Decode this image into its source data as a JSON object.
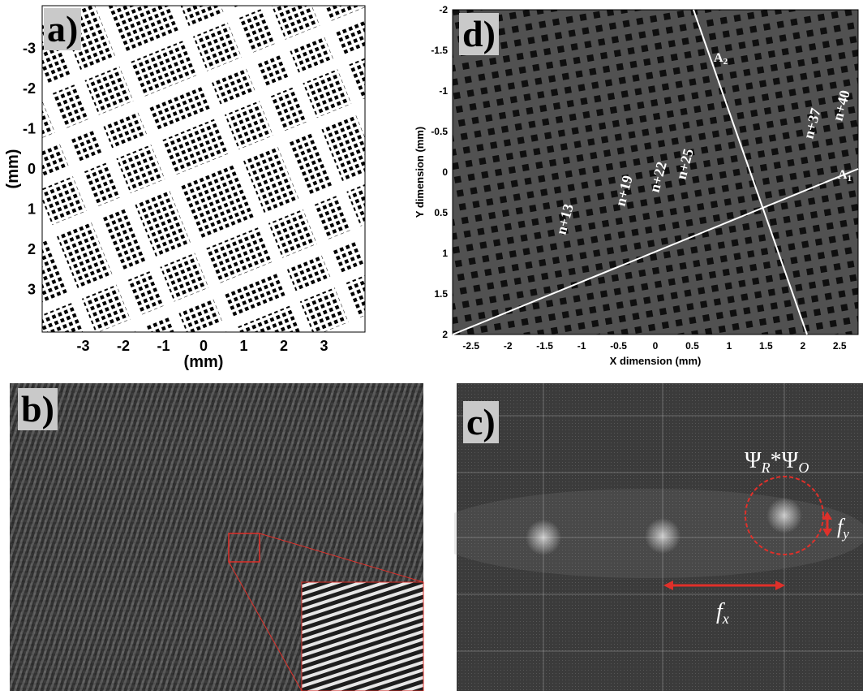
{
  "figure": {
    "panel_a": {
      "label": "a)",
      "x_axis_unit": "(mm)",
      "y_axis_unit": "(mm)",
      "x_ticks": [
        "-3",
        "-2",
        "-1",
        "0",
        "1",
        "2",
        "3"
      ],
      "y_ticks": [
        "-3",
        "-2",
        "-1",
        "0",
        "1",
        "2",
        "3"
      ]
    },
    "panel_b": {
      "label": "b)"
    },
    "panel_c": {
      "label": "c)",
      "term": "Ψ",
      "term_sub1": "R",
      "term_mid": "*Ψ",
      "term_sub2": "O",
      "fx": "f",
      "fx_sub": "x",
      "fy": "f",
      "fy_sub": "y",
      "accent_color": "#e0302a"
    },
    "panel_d": {
      "label": "d)",
      "x_axis_label": "X dimension (mm)",
      "y_axis_label": "Y dimension (mm)",
      "x_ticks": [
        "-2.5",
        "-2",
        "-1.5",
        "-1",
        "-0.5",
        "0",
        "0.5",
        "1",
        "1.5",
        "2",
        "2.5"
      ],
      "y_ticks": [
        "-2",
        "-1.5",
        "-1",
        "-0.5",
        "0",
        "0.5",
        "1",
        "1.5",
        "2"
      ],
      "axis1_label": "A",
      "axis1_sub": "1",
      "axis2_label": "A",
      "axis2_sub": "2",
      "annotations": [
        "n+13",
        "n+19",
        "n+22",
        "n+25",
        "n+37",
        "n+40"
      ]
    }
  }
}
